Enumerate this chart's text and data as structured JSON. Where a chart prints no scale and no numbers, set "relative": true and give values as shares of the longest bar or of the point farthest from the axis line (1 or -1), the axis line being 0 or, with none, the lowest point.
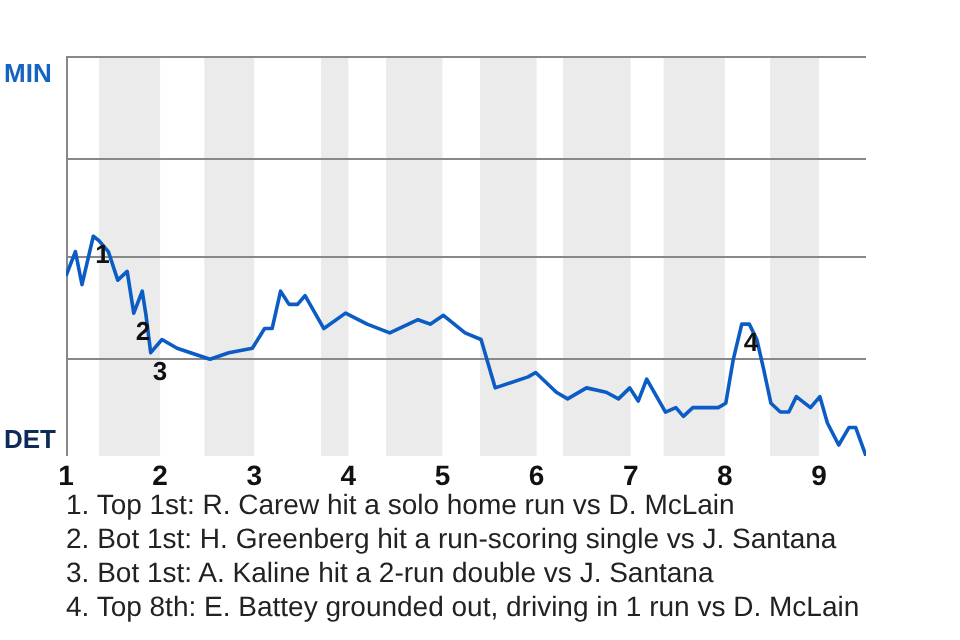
{
  "chart_data": {
    "type": "line",
    "relative": true,
    "x": [
      1,
      1.1,
      1.17,
      1.29,
      1.35,
      1.45,
      1.55,
      1.65,
      1.72,
      1.81,
      1.85,
      1.9,
      2.02,
      2.18,
      2.53,
      2.73,
      2.98,
      3.11,
      3.19,
      3.28,
      3.37,
      3.46,
      3.54,
      3.74,
      3.97,
      4.2,
      4.44,
      4.74,
      4.87,
      5.01,
      5.24,
      5.41,
      5.56,
      5.91,
      5.99,
      6.21,
      6.33,
      6.53,
      6.74,
      6.87,
      6.99,
      7.08,
      7.17,
      7.37,
      7.48,
      7.56,
      7.66,
      7.93,
      8.01,
      8.09,
      8.18,
      8.26,
      8.34,
      8.41,
      8.49,
      8.59,
      8.68,
      8.76,
      8.91,
      9.01,
      9.09,
      9.21,
      9.32,
      9.39,
      9.5
    ],
    "series": [
      {
        "color": "#0b5cc5",
        "values": [
          0.82,
          0.93,
          0.78,
          1,
          0.98,
          0.93,
          0.8,
          0.84,
          0.65,
          0.75,
          0.64,
          0.47,
          0.53,
          0.49,
          0.44,
          0.47,
          0.49,
          0.58,
          0.58,
          0.75,
          0.69,
          0.69,
          0.73,
          0.58,
          0.65,
          0.6,
          0.56,
          0.62,
          0.6,
          0.64,
          0.56,
          0.53,
          0.31,
          0.36,
          0.38,
          0.29,
          0.26,
          0.31,
          0.29,
          0.26,
          0.31,
          0.25,
          0.35,
          0.2,
          0.22,
          0.18,
          0.22,
          0.22,
          0.24,
          0.44,
          0.6,
          0.6,
          0.53,
          0.4,
          0.24,
          0.2,
          0.2,
          0.27,
          0.22,
          0.27,
          0.15,
          0.05,
          0.13,
          0.13,
          0
        ]
      }
    ],
    "xlim": [
      1,
      9.5
    ],
    "xticks": [
      1,
      2,
      3,
      4,
      5,
      6,
      7,
      8,
      9
    ],
    "legend": false,
    "marker": "none",
    "line_style": "solid",
    "ref_lines": [
      {
        "axis": "y",
        "value": 0.45,
        "color": "#888888"
      },
      {
        "axis": "y",
        "value": 0.91,
        "color": "#888888"
      },
      {
        "axis": "y",
        "value": 1.36,
        "color": "#888888"
      },
      {
        "axis": "y",
        "value": 1.82,
        "color": "#888888"
      }
    ],
    "bands": [
      {
        "axis": "x",
        "from": 1.35,
        "to": 2,
        "color": "#ebebeb"
      },
      {
        "axis": "x",
        "from": 2.47,
        "to": 3,
        "color": "#ebebeb"
      },
      {
        "axis": "x",
        "from": 3.71,
        "to": 4,
        "color": "#ebebeb"
      },
      {
        "axis": "x",
        "from": 4.4,
        "to": 5,
        "color": "#ebebeb"
      },
      {
        "axis": "x",
        "from": 5.4,
        "to": 6,
        "color": "#ebebeb"
      },
      {
        "axis": "x",
        "from": 6.28,
        "to": 7,
        "color": "#ebebeb"
      },
      {
        "axis": "x",
        "from": 7.35,
        "to": 8,
        "color": "#ebebeb"
      },
      {
        "axis": "x",
        "from": 8.48,
        "to": 9,
        "color": "#ebebeb"
      }
    ],
    "annotations": [
      "MIN",
      "DET",
      {
        "text": "1",
        "x": 1.29,
        "y": 1
      },
      {
        "text": "2",
        "x": 1.72,
        "y": 0.65
      },
      {
        "text": "3",
        "x": 1.9,
        "y": 0.47
      },
      {
        "text": "4",
        "x": 8.18,
        "y": 0.6
      },
      "1. Top 1st: R. Carew hit a solo home run vs D. McLain",
      "2. Bot 1st: H. Greenberg hit a run-scoring single vs J. Santana",
      "3. Bot 1st: A. Kaline hit a 2-run double vs J. Santana",
      "4. Top 8th: E. Battey grounded out, driving in 1 run vs D. McLain"
    ]
  }
}
